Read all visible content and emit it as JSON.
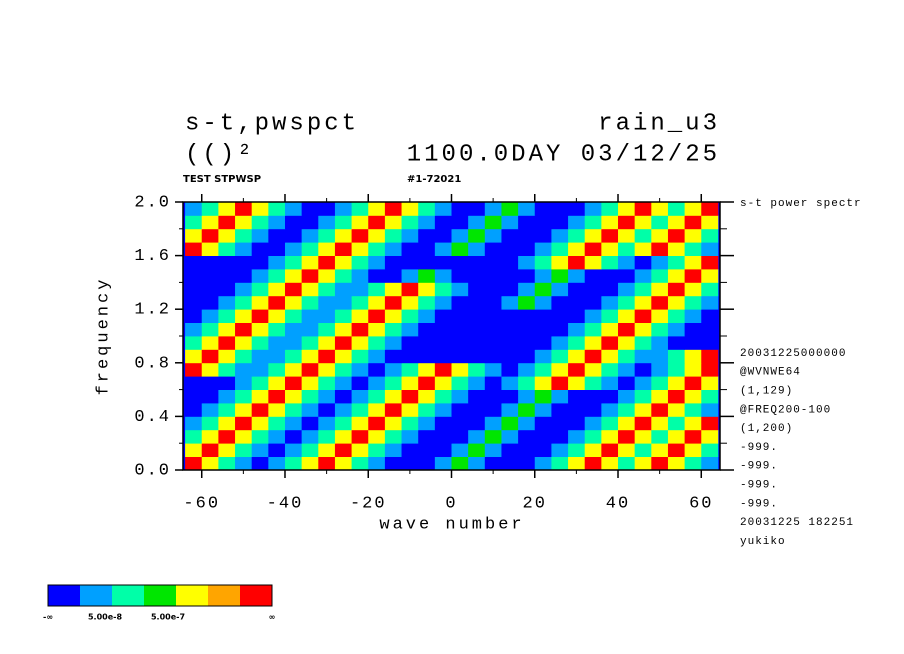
{
  "chart_data": {
    "type": "heatmap",
    "title_left": "s-t,pwspct",
    "title_right": "rain_u3",
    "subtitle_left": "(()²",
    "subtitle_right": "1100.0DAY 03/12/25",
    "label_left": "TEST STPWSP",
    "label_center": "#1-72021",
    "side_title": "s-t power spectr",
    "notes": [
      "20031225000000",
      "@WVNWE64",
      "(1,129)",
      "@FREQ200-100",
      "(1,200)",
      "-999.",
      "-999.",
      "-999.",
      "-999.",
      "20031225 182251",
      "yukiko"
    ],
    "xlabel": "wave number",
    "ylabel": "frequency",
    "xlim": [
      -64.5,
      64.5
    ],
    "ylim": [
      0,
      2
    ],
    "xticks": [
      -60,
      -40,
      -20,
      0,
      20,
      40,
      60
    ],
    "xminorticks": [
      -50,
      -30,
      -10,
      10,
      30,
      50
    ],
    "yticks": [
      {
        "value": 0,
        "label": "0.0"
      },
      0.4,
      0.8,
      1.2,
      1.6,
      {
        "value": 2,
        "label": "2.0"
      }
    ],
    "yminorticks": [
      0.2,
      0.6,
      1.0,
      1.4,
      1.8
    ],
    "x": [
      -62,
      -58,
      -54,
      -50,
      -46,
      -42,
      -38,
      -34,
      -30,
      -26,
      -22,
      -18,
      -14,
      -10,
      -6,
      -2,
      2,
      6,
      10,
      14,
      18,
      22,
      26,
      30,
      34,
      38,
      42,
      46,
      50,
      54,
      58,
      62
    ],
    "y": [
      0.05,
      0.15,
      0.25,
      0.35,
      0.45,
      0.55,
      0.65,
      0.75,
      0.85,
      0.95,
      1.05,
      1.15,
      1.25,
      1.35,
      1.45,
      1.55,
      1.65,
      1.75,
      1.85,
      1.95
    ],
    "z": [
      [
        6,
        4,
        2,
        1,
        0,
        1,
        2,
        4,
        6,
        4,
        2,
        1,
        0,
        0,
        0,
        1,
        3,
        1,
        0,
        0,
        0,
        1,
        2,
        4,
        6,
        4,
        2,
        4,
        6,
        4,
        2,
        1
      ],
      [
        4,
        6,
        4,
        2,
        1,
        0,
        1,
        2,
        4,
        6,
        4,
        2,
        1,
        0,
        0,
        0,
        1,
        3,
        1,
        0,
        0,
        0,
        1,
        2,
        4,
        6,
        4,
        2,
        4,
        6,
        4,
        2
      ],
      [
        2,
        4,
        6,
        4,
        2,
        1,
        0,
        1,
        2,
        4,
        6,
        4,
        2,
        1,
        0,
        0,
        0,
        1,
        3,
        1,
        0,
        0,
        0,
        1,
        2,
        4,
        6,
        4,
        2,
        4,
        6,
        4
      ],
      [
        1,
        2,
        4,
        6,
        4,
        2,
        1,
        0,
        1,
        2,
        4,
        6,
        4,
        2,
        1,
        0,
        0,
        0,
        1,
        3,
        1,
        0,
        0,
        0,
        1,
        2,
        4,
        6,
        4,
        2,
        4,
        6
      ],
      [
        0,
        1,
        2,
        4,
        6,
        4,
        2,
        1,
        0,
        1,
        2,
        4,
        6,
        4,
        2,
        1,
        0,
        0,
        0,
        1,
        3,
        1,
        0,
        0,
        0,
        1,
        2,
        4,
        6,
        4,
        2,
        1
      ],
      [
        0,
        0,
        1,
        2,
        4,
        6,
        4,
        2,
        1,
        0,
        1,
        2,
        4,
        6,
        4,
        2,
        1,
        0,
        0,
        0,
        1,
        3,
        1,
        0,
        0,
        0,
        1,
        2,
        4,
        6,
        4,
        2
      ],
      [
        0,
        0,
        0,
        1,
        2,
        4,
        6,
        4,
        2,
        1,
        0,
        1,
        2,
        4,
        6,
        4,
        2,
        1,
        0,
        1,
        2,
        4,
        6,
        4,
        2,
        1,
        0,
        1,
        2,
        4,
        6,
        4
      ],
      [
        6,
        4,
        2,
        1,
        1,
        2,
        4,
        6,
        4,
        2,
        1,
        0,
        1,
        2,
        4,
        6,
        4,
        2,
        1,
        0,
        1,
        2,
        4,
        6,
        4,
        2,
        1,
        0,
        1,
        2,
        4,
        6
      ],
      [
        4,
        6,
        4,
        2,
        1,
        1,
        2,
        4,
        6,
        4,
        2,
        1,
        0,
        0,
        0,
        0,
        0,
        0,
        0,
        0,
        0,
        1,
        2,
        4,
        6,
        4,
        2,
        1,
        1,
        2,
        4,
        6
      ],
      [
        2,
        4,
        6,
        4,
        2,
        1,
        1,
        2,
        4,
        6,
        4,
        2,
        1,
        0,
        0,
        0,
        0,
        0,
        0,
        0,
        0,
        0,
        1,
        2,
        4,
        6,
        4,
        2,
        1,
        0,
        0,
        0
      ],
      [
        1,
        2,
        4,
        6,
        4,
        2,
        1,
        1,
        2,
        4,
        6,
        4,
        2,
        1,
        0,
        0,
        0,
        0,
        0,
        0,
        0,
        0,
        0,
        1,
        2,
        4,
        6,
        4,
        2,
        1,
        0,
        0
      ],
      [
        0,
        1,
        2,
        4,
        6,
        4,
        2,
        1,
        1,
        2,
        4,
        6,
        4,
        2,
        1,
        0,
        0,
        0,
        0,
        0,
        0,
        0,
        0,
        0,
        1,
        2,
        4,
        6,
        4,
        2,
        1,
        0
      ],
      [
        0,
        0,
        1,
        2,
        4,
        6,
        4,
        2,
        1,
        1,
        2,
        4,
        6,
        4,
        2,
        1,
        0,
        0,
        0,
        1,
        3,
        1,
        0,
        0,
        0,
        1,
        2,
        4,
        6,
        4,
        2,
        1
      ],
      [
        0,
        0,
        0,
        1,
        2,
        4,
        6,
        4,
        2,
        1,
        1,
        2,
        4,
        6,
        4,
        2,
        1,
        0,
        0,
        0,
        1,
        3,
        1,
        0,
        0,
        0,
        1,
        2,
        4,
        6,
        4,
        2
      ],
      [
        0,
        0,
        0,
        0,
        1,
        2,
        4,
        6,
        4,
        2,
        1,
        0,
        0,
        1,
        3,
        1,
        0,
        0,
        0,
        0,
        0,
        1,
        3,
        1,
        0,
        0,
        0,
        1,
        2,
        4,
        6,
        4
      ],
      [
        0,
        0,
        0,
        0,
        0,
        1,
        2,
        4,
        6,
        4,
        2,
        1,
        0,
        0,
        0,
        0,
        0,
        0,
        0,
        0,
        1,
        2,
        4,
        6,
        4,
        2,
        1,
        0,
        1,
        2,
        4,
        6
      ],
      [
        6,
        4,
        2,
        1,
        0,
        0,
        1,
        2,
        4,
        6,
        4,
        2,
        1,
        0,
        0,
        1,
        3,
        1,
        0,
        0,
        0,
        1,
        2,
        4,
        6,
        4,
        2,
        4,
        6,
        4,
        2,
        1
      ],
      [
        4,
        6,
        4,
        2,
        1,
        0,
        0,
        1,
        2,
        4,
        6,
        4,
        2,
        1,
        0,
        0,
        1,
        3,
        1,
        0,
        0,
        0,
        1,
        2,
        4,
        6,
        4,
        2,
        4,
        6,
        4,
        2
      ],
      [
        2,
        4,
        6,
        4,
        2,
        1,
        0,
        0,
        1,
        2,
        4,
        6,
        4,
        2,
        1,
        0,
        0,
        1,
        3,
        1,
        0,
        0,
        0,
        1,
        2,
        4,
        6,
        4,
        2,
        4,
        6,
        4
      ],
      [
        1,
        2,
        4,
        6,
        4,
        2,
        1,
        0,
        0,
        1,
        2,
        4,
        6,
        4,
        2,
        1,
        0,
        0,
        1,
        3,
        1,
        0,
        0,
        0,
        1,
        2,
        4,
        6,
        4,
        2,
        4,
        6
      ]
    ],
    "colorbar": {
      "colors": [
        "#0000ff",
        "#00a0ff",
        "#00ffa8",
        "#00e600",
        "#ffff00",
        "#ffa500",
        "#ff0000"
      ],
      "labels": [
        "-∞",
        "5.00e-8",
        "5.00e-7",
        "∞"
      ]
    }
  }
}
